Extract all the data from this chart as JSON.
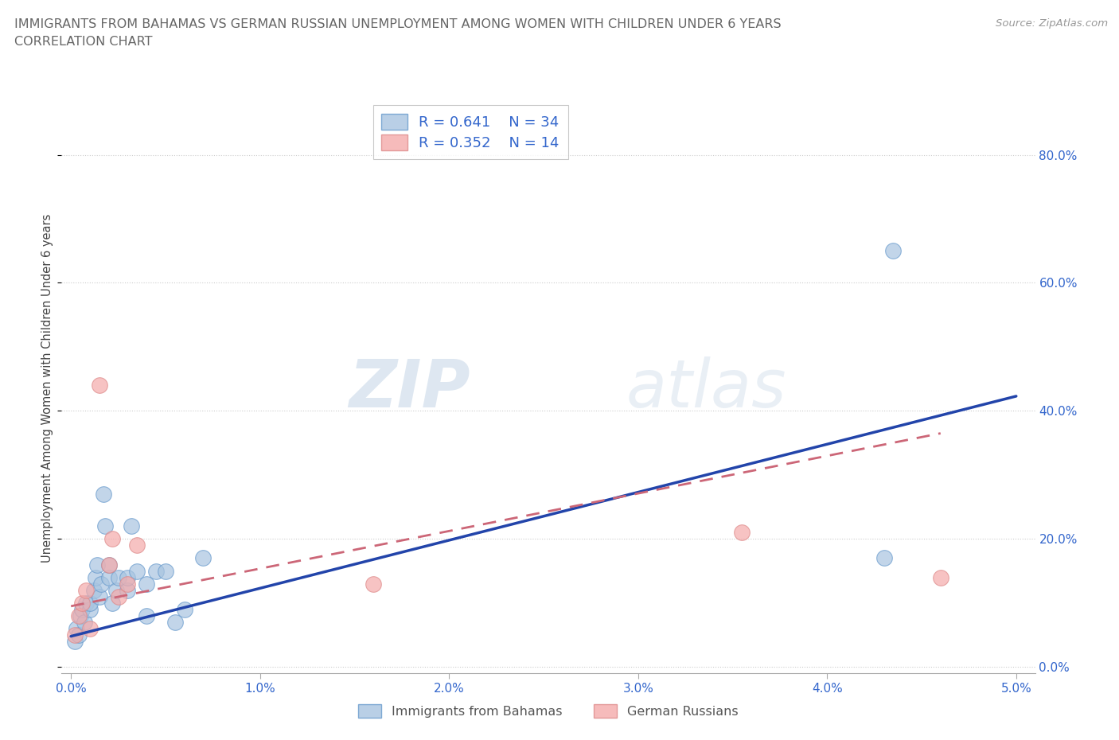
{
  "title_line1": "IMMIGRANTS FROM BAHAMAS VS GERMAN RUSSIAN UNEMPLOYMENT AMONG WOMEN WITH CHILDREN UNDER 6 YEARS",
  "title_line2": "CORRELATION CHART",
  "source": "Source: ZipAtlas.com",
  "ylabel": "Unemployment Among Women with Children Under 6 years",
  "xlim": [
    -0.0005,
    0.051
  ],
  "ylim": [
    -0.01,
    0.88
  ],
  "xticks": [
    0.0,
    0.01,
    0.02,
    0.03,
    0.04,
    0.05
  ],
  "xtick_labels": [
    "0.0%",
    "1.0%",
    "2.0%",
    "3.0%",
    "4.0%",
    "5.0%"
  ],
  "ytick_positions": [
    0.0,
    0.2,
    0.4,
    0.6,
    0.8
  ],
  "ytick_labels": [
    "0.0%",
    "20.0%",
    "40.0%",
    "60.0%",
    "80.0%"
  ],
  "r_blue": 0.641,
  "n_blue": 34,
  "r_pink": 0.352,
  "n_pink": 14,
  "legend1_label": "Immigrants from Bahamas",
  "legend2_label": "German Russians",
  "watermark_zip": "ZIP",
  "watermark_atlas": "atlas",
  "blue_color": "#A8C4E0",
  "blue_edge": "#6699CC",
  "pink_color": "#F4AAAA",
  "pink_edge": "#DD8888",
  "line_blue_color": "#2244AA",
  "line_pink_color": "#CC6677",
  "blue_scatter_x": [
    0.0002,
    0.0003,
    0.0004,
    0.0005,
    0.0006,
    0.0007,
    0.0008,
    0.001,
    0.001,
    0.0012,
    0.0013,
    0.0014,
    0.0015,
    0.0016,
    0.0017,
    0.0018,
    0.002,
    0.002,
    0.0022,
    0.0024,
    0.0025,
    0.003,
    0.003,
    0.0032,
    0.0035,
    0.004,
    0.004,
    0.0045,
    0.005,
    0.0055,
    0.006,
    0.007,
    0.043,
    0.0435
  ],
  "blue_scatter_y": [
    0.04,
    0.06,
    0.05,
    0.08,
    0.09,
    0.07,
    0.1,
    0.09,
    0.1,
    0.12,
    0.14,
    0.16,
    0.11,
    0.13,
    0.27,
    0.22,
    0.14,
    0.16,
    0.1,
    0.12,
    0.14,
    0.12,
    0.14,
    0.22,
    0.15,
    0.08,
    0.13,
    0.15,
    0.15,
    0.07,
    0.09,
    0.17,
    0.17,
    0.65
  ],
  "pink_scatter_x": [
    0.0002,
    0.0004,
    0.0006,
    0.0008,
    0.001,
    0.0015,
    0.002,
    0.0022,
    0.0025,
    0.003,
    0.0035,
    0.016,
    0.0355,
    0.046
  ],
  "pink_scatter_y": [
    0.05,
    0.08,
    0.1,
    0.12,
    0.06,
    0.44,
    0.16,
    0.2,
    0.11,
    0.13,
    0.19,
    0.13,
    0.21,
    0.14
  ],
  "blue_line_x": [
    0.0,
    0.05
  ],
  "blue_line_y": [
    0.048,
    0.423
  ],
  "pink_line_x": [
    0.0,
    0.046
  ],
  "pink_line_y": [
    0.095,
    0.365
  ],
  "title_color": "#666666",
  "axis_label_color": "#444444",
  "tick_color": "#3366CC",
  "grid_color": "#CCCCCC",
  "source_color": "#999999"
}
